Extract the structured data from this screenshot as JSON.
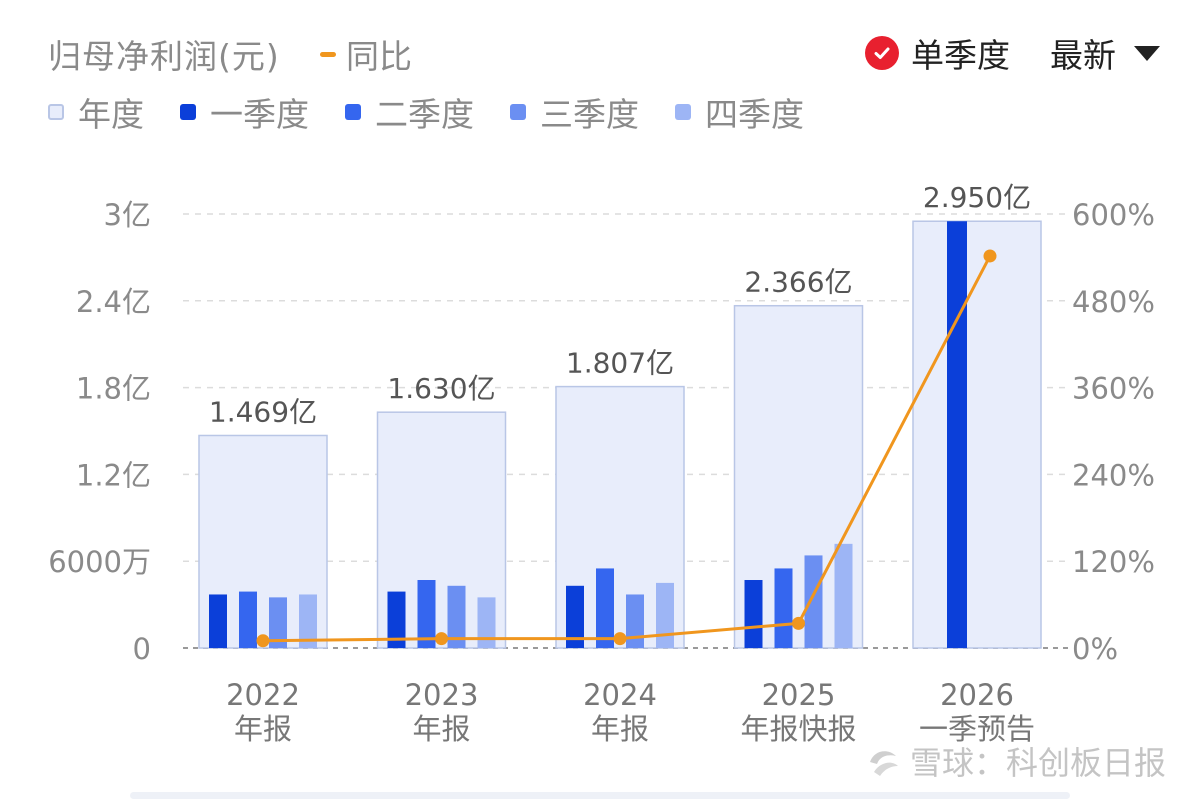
{
  "header": {
    "title": "归母净利润(元)",
    "yoy_label": "同比",
    "mode_label": "单季度",
    "sort_label": "最新"
  },
  "legend": [
    {
      "label": "年度",
      "color": "#e8edfb",
      "border": "#b9c6e6"
    },
    {
      "label": "一季度",
      "color": "#0b3fd9"
    },
    {
      "label": "二季度",
      "color": "#3566ef"
    },
    {
      "label": "三季度",
      "color": "#6b8ff2"
    },
    {
      "label": "四季度",
      "color": "#9db5f5"
    }
  ],
  "chart_data": {
    "type": "bar",
    "categories": [
      [
        "2022",
        "年报"
      ],
      [
        "2023",
        "年报"
      ],
      [
        "2024",
        "年报"
      ],
      [
        "2025",
        "年报快报"
      ],
      [
        "2026",
        "一季预告"
      ]
    ],
    "annual": {
      "name": "年度",
      "values": [
        146900000,
        163000000,
        180700000,
        236600000,
        295000000
      ],
      "labels": [
        "1.469亿",
        "1.630亿",
        "1.807亿",
        "2.366亿",
        "2.950亿"
      ]
    },
    "quarters": [
      {
        "name": "一季度",
        "values": [
          37000000,
          39000000,
          43000000,
          47000000,
          295000000
        ]
      },
      {
        "name": "二季度",
        "values": [
          39000000,
          47000000,
          55000000,
          55000000,
          null
        ]
      },
      {
        "name": "三季度",
        "values": [
          35000000,
          43000000,
          37000000,
          64000000,
          null
        ]
      },
      {
        "name": "四季度",
        "values": [
          37000000,
          35000000,
          45000000,
          72000000,
          null
        ]
      }
    ],
    "yoy": {
      "name": "同比",
      "values": [
        10,
        13,
        13,
        34,
        542
      ]
    },
    "left_axis": {
      "min": 0,
      "max": 300000000,
      "ticks": [
        0,
        60000000,
        120000000,
        180000000,
        240000000,
        300000000
      ],
      "tick_labels": [
        "0",
        "6000万",
        "1.2亿",
        "1.8亿",
        "2.4亿",
        "3亿"
      ]
    },
    "right_axis": {
      "min": 0,
      "max": 600,
      "ticks": [
        0,
        120,
        240,
        360,
        480,
        600
      ],
      "tick_labels": [
        "0%",
        "120%",
        "240%",
        "360%",
        "480%",
        "600%"
      ]
    },
    "grid": true,
    "colors": {
      "annual_fill": "#e8edfb",
      "annual_border": "#b9c6e6",
      "q1": "#0b3fd9",
      "q2": "#3566ef",
      "q3": "#6b8ff2",
      "q4": "#9db5f5",
      "yoy": "#f0961e",
      "grid": "#dcdcdc",
      "axis_text": "#8a8a8a"
    }
  },
  "watermark": {
    "text": "雪球：科创板日报"
  }
}
